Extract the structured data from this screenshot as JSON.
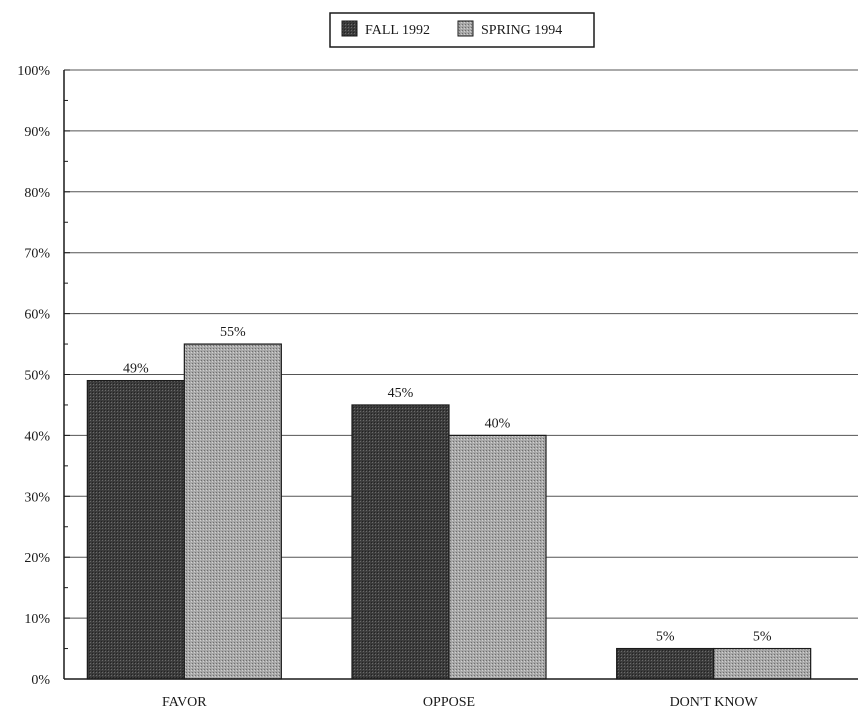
{
  "chart_data": {
    "type": "bar",
    "categories": [
      "FAVOR",
      "OPPOSE",
      "DON'T KNOW"
    ],
    "series": [
      {
        "name": "FALL 1992",
        "values": [
          49,
          45,
          5
        ],
        "labels": [
          "49%",
          "45%",
          "5%"
        ]
      },
      {
        "name": "SPRING 1994",
        "values": [
          55,
          40,
          5
        ],
        "labels": [
          "55%",
          "40%",
          "5%"
        ]
      }
    ],
    "ylim": [
      0,
      100
    ],
    "yticks": [
      0,
      10,
      20,
      30,
      40,
      50,
      60,
      70,
      80,
      90,
      100
    ],
    "ytick_labels": [
      "0%",
      "10%",
      "20%",
      "30%",
      "40%",
      "50%",
      "60%",
      "70%",
      "80%",
      "90%",
      "100%"
    ],
    "title": "",
    "xlabel": "",
    "ylabel": "",
    "grid": "horizontal",
    "legend": {
      "position": "top-center",
      "entries": [
        "FALL 1992",
        "SPRING 1994"
      ]
    },
    "colors": {
      "series_1": "#3a3a3a",
      "series_2": "#9a9a9a",
      "grid": "#555555",
      "axis": "#1a1a1a"
    }
  }
}
